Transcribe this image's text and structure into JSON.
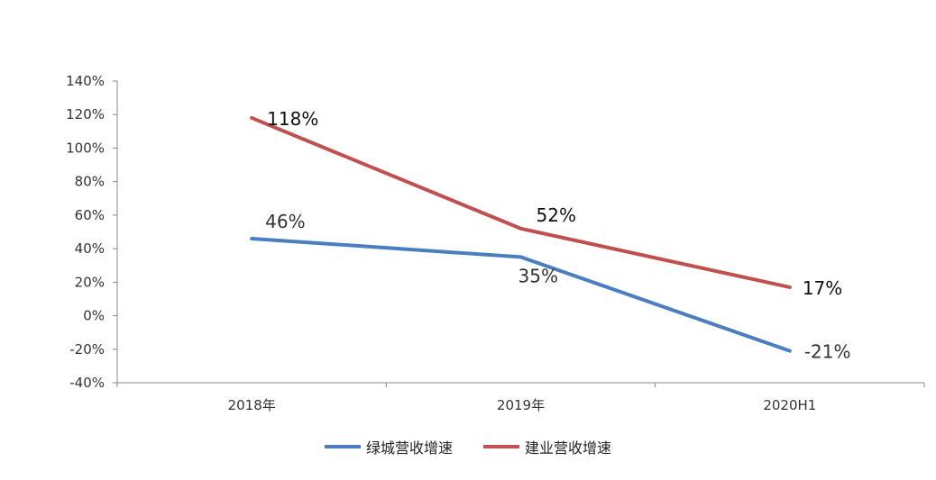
{
  "chart_data": {
    "type": "line",
    "title": "",
    "xlabel": "",
    "ylabel": "",
    "categories": [
      "2018年",
      "2019年",
      "2020H1"
    ],
    "ylim": [
      -40,
      140
    ],
    "yticks": [
      140,
      120,
      100,
      80,
      60,
      40,
      20,
      0,
      -20,
      -40
    ],
    "ytick_labels": [
      "140%",
      "120%",
      "100%",
      "80%",
      "60%",
      "40%",
      "20%",
      "0%",
      "-20%",
      "-40%"
    ],
    "grid": false,
    "legend": "bottom",
    "series": [
      {
        "name": "绿城营收增速",
        "color": "#4a7ebf",
        "values": [
          46,
          35,
          -21
        ],
        "labels": [
          "46%",
          "35%",
          "-21%"
        ]
      },
      {
        "name": "建业营收增速",
        "color": "#c0504d",
        "values": [
          118,
          52,
          17
        ],
        "labels": [
          "118%",
          "52%",
          "17%"
        ]
      }
    ]
  }
}
